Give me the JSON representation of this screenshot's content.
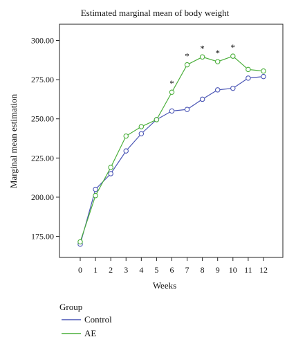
{
  "chart_data": {
    "type": "line",
    "title": "Estimated marginal mean of body weight",
    "xlabel": "Weeks",
    "ylabel": "Marginal mean estimation",
    "x": [
      0,
      1,
      2,
      3,
      4,
      5,
      6,
      7,
      8,
      9,
      10,
      11,
      12
    ],
    "ylim": [
      160,
      305
    ],
    "yticks": [
      "175.00",
      "200.00",
      "225.00",
      "250.00",
      "275.00",
      "300.00"
    ],
    "xticks": [
      "0",
      "1",
      "2",
      "3",
      "4",
      "5",
      "6",
      "7",
      "8",
      "9",
      "10",
      "11",
      "12"
    ],
    "grid": false,
    "legend": {
      "title": "Group",
      "placement": "bottom-left"
    },
    "series": [
      {
        "name": "Control",
        "color": "#4a55b5",
        "values": [
          170,
          205,
          215,
          229.5,
          240.5,
          249.5,
          255,
          256,
          262.5,
          268.5,
          269.5,
          276,
          277
        ]
      },
      {
        "name": "AE",
        "color": "#4caf3c",
        "values": [
          171.5,
          201,
          219,
          239,
          245,
          249.5,
          267,
          284.5,
          289.5,
          286.5,
          290,
          281.5,
          280.5
        ]
      }
    ],
    "significance_marker": "*",
    "significant_x": [
      6,
      7,
      8,
      9,
      10
    ]
  }
}
